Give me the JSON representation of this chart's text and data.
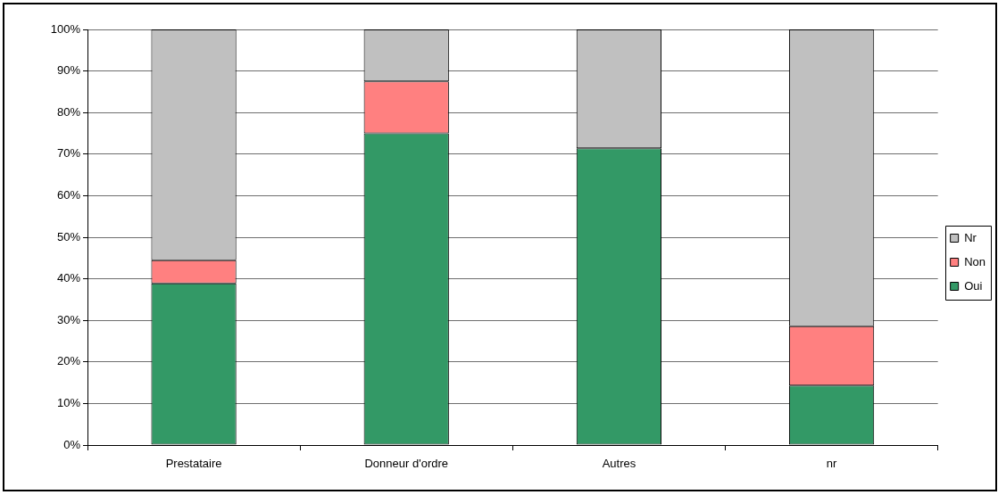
{
  "chart_data": {
    "type": "bar",
    "stacked": true,
    "categories": [
      "Prestataire",
      "Donneur d'ordre",
      "Autres",
      "nr"
    ],
    "series": [
      {
        "name": "Oui",
        "color": "#339966",
        "values": [
          38.9,
          75,
          71.4,
          14.3
        ]
      },
      {
        "name": "Non",
        "color": "#ff8080",
        "values": [
          5.6,
          12.5,
          0,
          14.3
        ]
      },
      {
        "name": "Nr",
        "color": "#c0c0c0",
        "values": [
          55.5,
          12.5,
          28.6,
          71.4
        ]
      }
    ],
    "ylim": [
      0,
      100
    ],
    "yticks": [
      {
        "value": 0,
        "label": "0%"
      },
      {
        "value": 10,
        "label": "10%"
      },
      {
        "value": 20,
        "label": "20%"
      },
      {
        "value": 30,
        "label": "30%"
      },
      {
        "value": 40,
        "label": "40%"
      },
      {
        "value": 50,
        "label": "50%"
      },
      {
        "value": 60,
        "label": "60%"
      },
      {
        "value": 70,
        "label": "70%"
      },
      {
        "value": 80,
        "label": "80%"
      },
      {
        "value": 90,
        "label": "90%"
      },
      {
        "value": 100,
        "label": "100%"
      }
    ],
    "grid": "y",
    "legend": "right"
  }
}
